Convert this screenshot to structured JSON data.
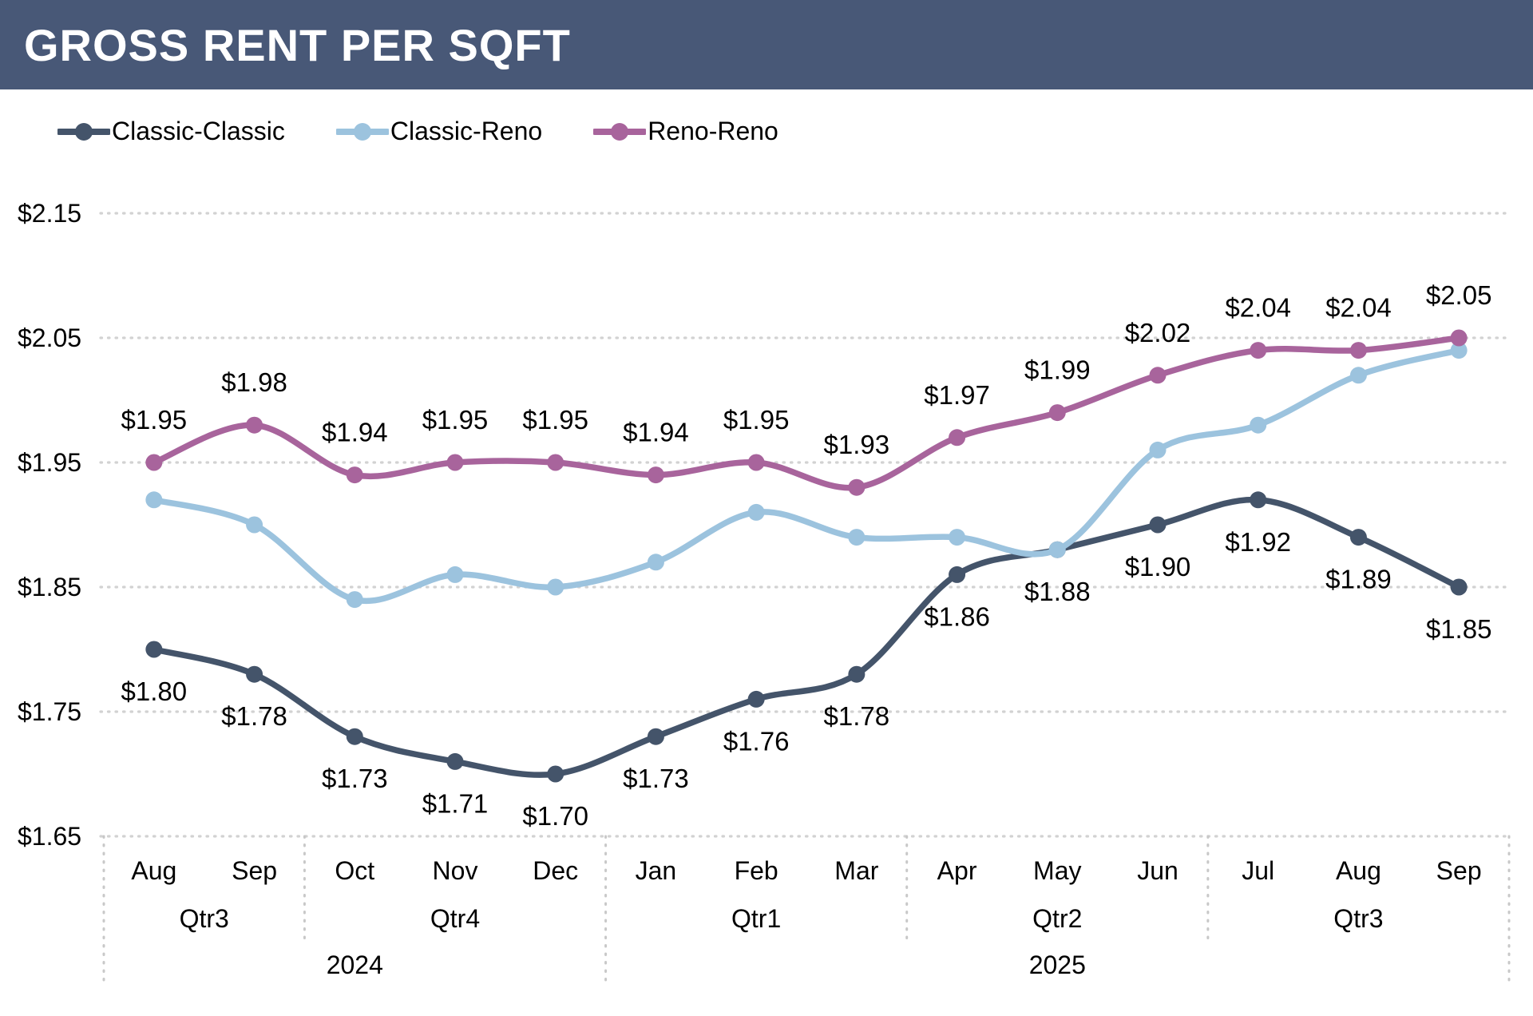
{
  "header": {
    "title": "GROSS RENT PER SQFT",
    "bg_color": "#485877",
    "text_color": "#FFFFFF"
  },
  "legend": {
    "position": "top-left",
    "items": [
      {
        "label": "Classic-Classic",
        "color": "#44546A"
      },
      {
        "label": "Classic-Reno",
        "color": "#9CC3DE"
      },
      {
        "label": "Reno-Reno",
        "color": "#A8649C"
      }
    ]
  },
  "chart_data": {
    "type": "line",
    "title": "GROSS RENT PER SQFT",
    "smooth_lines": true,
    "grid": "dotted horizontal gridlines, dotted quarter/year separators below axis",
    "legend_position": "top-left",
    "categories": [
      "Aug",
      "Sep",
      "Oct",
      "Nov",
      "Dec",
      "Jan",
      "Feb",
      "Mar",
      "Apr",
      "May",
      "Jun",
      "Jul",
      "Aug",
      "Sep"
    ],
    "quarter_groups": [
      {
        "label": "Qtr3",
        "span": 2
      },
      {
        "label": "Qtr4",
        "span": 3
      },
      {
        "label": "Qtr1",
        "span": 3
      },
      {
        "label": "Qtr2",
        "span": 3
      },
      {
        "label": "Qtr3",
        "span": 3
      }
    ],
    "year_groups": [
      {
        "label": "2024",
        "span": 5
      },
      {
        "label": "2025",
        "span": 9
      }
    ],
    "series": [
      {
        "name": "Classic-Classic",
        "color": "#44546A",
        "data_labels": "below",
        "values": [
          1.8,
          1.78,
          1.73,
          1.71,
          1.7,
          1.73,
          1.76,
          1.78,
          1.86,
          1.88,
          1.9,
          1.92,
          1.89,
          1.85
        ]
      },
      {
        "name": "Classic-Reno",
        "color": "#9CC3DE",
        "data_labels": "none",
        "values": [
          1.92,
          1.9,
          1.84,
          1.86,
          1.85,
          1.87,
          1.91,
          1.89,
          1.89,
          1.88,
          1.96,
          1.98,
          2.02,
          2.04
        ]
      },
      {
        "name": "Reno-Reno",
        "color": "#A8649C",
        "data_labels": "above",
        "values": [
          1.95,
          1.98,
          1.94,
          1.95,
          1.95,
          1.94,
          1.95,
          1.93,
          1.97,
          1.99,
          2.02,
          2.04,
          2.04,
          2.05
        ]
      }
    ],
    "ylabel": "",
    "xlabel": "",
    "ylim": [
      1.65,
      2.15
    ],
    "ytick_step": 0.1,
    "ytick_labels": [
      "$1.65",
      "$1.75",
      "$1.85",
      "$1.95",
      "$2.05",
      "$2.15"
    ],
    "ytick_format": "$#.00",
    "gridline_color": "#D2D2D2",
    "label_color": "#000000"
  }
}
